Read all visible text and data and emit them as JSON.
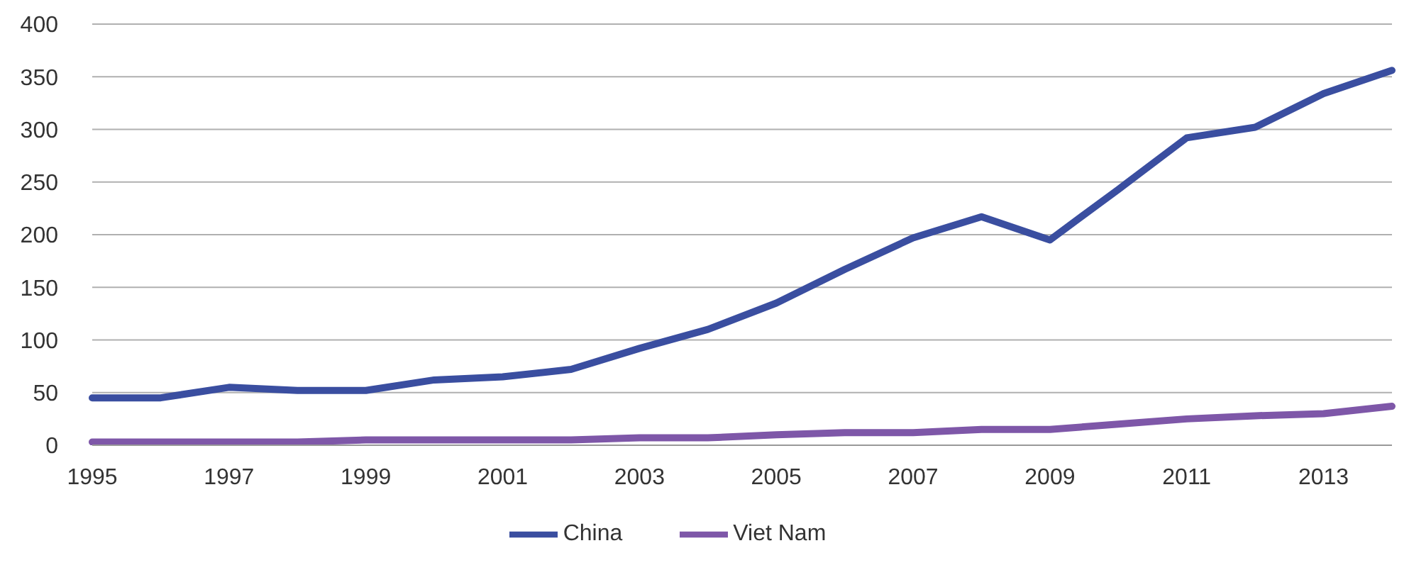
{
  "chart_data": {
    "type": "line",
    "categories": [
      "1995",
      null,
      "1997",
      null,
      "1999",
      null,
      "2001",
      null,
      "2003",
      null,
      "2005",
      null,
      "2007",
      null,
      "2009",
      null,
      "2011",
      null,
      "2013",
      null
    ],
    "series": [
      {
        "name": "China",
        "color": "#3a4ea0",
        "values": [
          45,
          45,
          55,
          52,
          52,
          62,
          65,
          72,
          92,
          110,
          135,
          167,
          197,
          217,
          195,
          243,
          292,
          302,
          334,
          356
        ]
      },
      {
        "name": "Viet Nam",
        "color": "#7e57a8",
        "values": [
          3,
          3,
          3,
          3,
          5,
          5,
          5,
          5,
          7,
          7,
          10,
          12,
          12,
          15,
          15,
          20,
          25,
          28,
          30,
          37
        ]
      }
    ],
    "ylim": [
      0,
      400
    ],
    "yticks": [
      0,
      50,
      100,
      150,
      200,
      250,
      300,
      350,
      400
    ],
    "grid": "y",
    "legend": "bottom",
    "marker": "none",
    "line_style": "solid"
  }
}
